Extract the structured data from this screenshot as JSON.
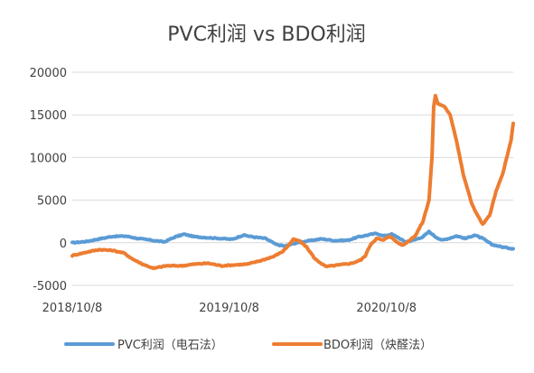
{
  "chart_data": {
    "type": "line",
    "title": "PVC利润 vs BDO利润",
    "xlabel": "",
    "ylabel": "",
    "x_tick_labels": [
      "2018/10/8",
      "2019/10/8",
      "2020/10/8"
    ],
    "x_tick_dates": [
      "2018-10-08",
      "2019-10-08",
      "2020-10-08"
    ],
    "x_range": [
      "2018-10-08",
      "2021-07-30"
    ],
    "ylim": [
      -5000,
      20000
    ],
    "y_ticks": [
      20000,
      15000,
      10000,
      5000,
      0,
      -5000
    ],
    "y_tick_labels": [
      "20000",
      "15000",
      "10000",
      "5000",
      "0",
      "-5000"
    ],
    "grid": true,
    "legend_position": "bottom",
    "series": [
      {
        "name": "PVC利润（电石法）",
        "color": "#5B9BD5",
        "points": [
          [
            "2018-10-08",
            0
          ],
          [
            "2018-11-10",
            150
          ],
          [
            "2018-12-10",
            450
          ],
          [
            "2019-01-10",
            750
          ],
          [
            "2019-02-10",
            780
          ],
          [
            "2019-03-10",
            500
          ],
          [
            "2019-04-10",
            300
          ],
          [
            "2019-05-10",
            100
          ],
          [
            "2019-06-05",
            700
          ],
          [
            "2019-06-25",
            1000
          ],
          [
            "2019-07-20",
            700
          ],
          [
            "2019-08-20",
            600
          ],
          [
            "2019-09-20",
            500
          ],
          [
            "2019-10-15",
            400
          ],
          [
            "2019-11-10",
            900
          ],
          [
            "2019-12-01",
            700
          ],
          [
            "2020-01-01",
            500
          ],
          [
            "2020-01-25",
            -200
          ],
          [
            "2020-02-15",
            -400
          ],
          [
            "2020-03-05",
            -100
          ],
          [
            "2020-03-25",
            100
          ],
          [
            "2020-04-20",
            300
          ],
          [
            "2020-05-10",
            450
          ],
          [
            "2020-06-10",
            250
          ],
          [
            "2020-07-10",
            300
          ],
          [
            "2020-08-05",
            700
          ],
          [
            "2020-08-25",
            900
          ],
          [
            "2020-09-15",
            1100
          ],
          [
            "2020-10-01",
            800
          ],
          [
            "2020-10-20",
            1000
          ],
          [
            "2020-11-05",
            600
          ],
          [
            "2020-11-20",
            100
          ],
          [
            "2020-12-10",
            300
          ],
          [
            "2021-01-01",
            700
          ],
          [
            "2021-01-15",
            1300
          ],
          [
            "2021-01-30",
            700
          ],
          [
            "2021-02-15",
            300
          ],
          [
            "2021-03-01",
            500
          ],
          [
            "2021-03-20",
            800
          ],
          [
            "2021-04-10",
            500
          ],
          [
            "2021-05-01",
            900
          ],
          [
            "2021-05-20",
            500
          ],
          [
            "2021-06-10",
            -200
          ],
          [
            "2021-07-05",
            -500
          ],
          [
            "2021-07-30",
            -700
          ]
        ]
      },
      {
        "name": "BDO利润（炔醛法）",
        "color": "#ED7D31",
        "points": [
          [
            "2018-10-08",
            -1500
          ],
          [
            "2018-11-10",
            -1100
          ],
          [
            "2018-12-10",
            -800
          ],
          [
            "2019-01-10",
            -900
          ],
          [
            "2019-02-05",
            -1200
          ],
          [
            "2019-02-25",
            -1900
          ],
          [
            "2019-03-20",
            -2500
          ],
          [
            "2019-04-15",
            -3000
          ],
          [
            "2019-05-15",
            -2700
          ],
          [
            "2019-06-20",
            -2700
          ],
          [
            "2019-07-20",
            -2500
          ],
          [
            "2019-08-20",
            -2400
          ],
          [
            "2019-09-20",
            -2700
          ],
          [
            "2019-10-20",
            -2600
          ],
          [
            "2019-11-20",
            -2500
          ],
          [
            "2019-12-20",
            -2100
          ],
          [
            "2020-01-20",
            -1600
          ],
          [
            "2020-02-10",
            -1000
          ],
          [
            "2020-02-25",
            -200
          ],
          [
            "2020-03-05",
            400
          ],
          [
            "2020-03-20",
            200
          ],
          [
            "2020-04-05",
            -500
          ],
          [
            "2020-04-25",
            -1900
          ],
          [
            "2020-05-20",
            -2800
          ],
          [
            "2020-06-20",
            -2600
          ],
          [
            "2020-07-20",
            -2400
          ],
          [
            "2020-08-10",
            -2000
          ],
          [
            "2020-08-20",
            -1500
          ],
          [
            "2020-09-01",
            -200
          ],
          [
            "2020-09-15",
            500
          ],
          [
            "2020-10-01",
            300
          ],
          [
            "2020-10-15",
            800
          ],
          [
            "2020-11-01",
            100
          ],
          [
            "2020-11-15",
            -300
          ],
          [
            "2020-12-01",
            300
          ],
          [
            "2020-12-15",
            900
          ],
          [
            "2021-01-01",
            2500
          ],
          [
            "2021-01-15",
            5000
          ],
          [
            "2021-01-22",
            10000
          ],
          [
            "2021-01-26",
            16000
          ],
          [
            "2021-01-30",
            17200
          ],
          [
            "2021-02-05",
            16300
          ],
          [
            "2021-02-20",
            16000
          ],
          [
            "2021-03-05",
            15000
          ],
          [
            "2021-03-20",
            12000
          ],
          [
            "2021-04-05",
            8000
          ],
          [
            "2021-04-25",
            4500
          ],
          [
            "2021-05-10",
            3000
          ],
          [
            "2021-05-20",
            2200
          ],
          [
            "2021-06-05",
            3200
          ],
          [
            "2021-06-20",
            6000
          ],
          [
            "2021-07-05",
            8000
          ],
          [
            "2021-07-15",
            10000
          ],
          [
            "2021-07-25",
            12000
          ],
          [
            "2021-07-30",
            14000
          ]
        ]
      }
    ]
  }
}
